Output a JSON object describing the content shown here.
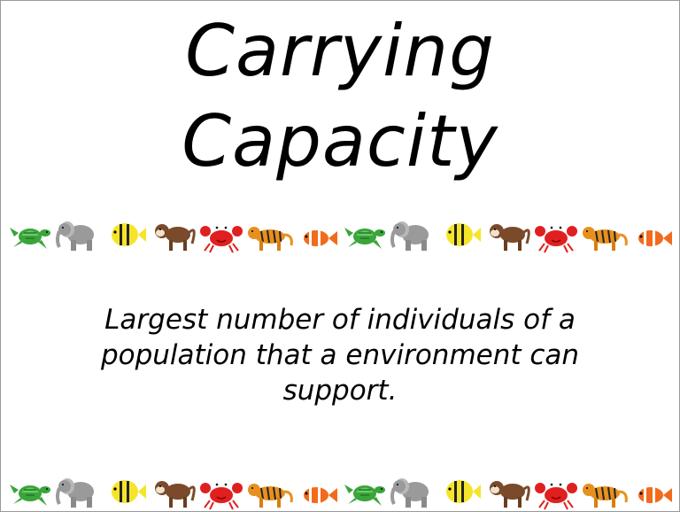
{
  "slide": {
    "title_line1": "Carrying",
    "title_line2": "Capacity",
    "definition": "Largest number of individuals of a population that a environment can support."
  },
  "border": {
    "animal_sequence": [
      "turtle-icon",
      "elephant-icon",
      "fish-icon",
      "monkey-icon",
      "crab-icon",
      "tiger-icon",
      "clownfish-icon"
    ],
    "colors": {
      "turtle": "#3aa53a",
      "elephant": "#9a9a9a",
      "fish": "#f5e52a",
      "monkey": "#7a4a2a",
      "crab": "#e02020",
      "tiger": "#e8901e",
      "clownfish": "#f26b1d"
    }
  }
}
